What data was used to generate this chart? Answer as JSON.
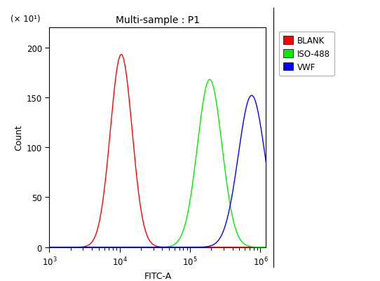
{
  "title": "Multi-sample : P1",
  "xlabel": "FITC-A",
  "ylabel": "Count",
  "ylabel_extra": "(× 10¹)",
  "ylim": [
    0,
    220
  ],
  "yticks": [
    0,
    50,
    100,
    150,
    200
  ],
  "xlim_log": [
    1000,
    1200000
  ],
  "curves": [
    {
      "label": "BLANK",
      "color": "red",
      "peak_x": 10500,
      "sigma": 0.155,
      "peak_y": 193
    },
    {
      "label": "ISO-488",
      "color": "#00ee00",
      "peak_x": 190000,
      "sigma": 0.175,
      "peak_y": 168
    },
    {
      "label": "VWF",
      "color": "blue",
      "peak_x": 750000,
      "sigma": 0.19,
      "peak_y": 152
    }
  ],
  "legend_colors": [
    "red",
    "#00ee00",
    "blue"
  ],
  "legend_labels": [
    "BLANK",
    "ISO-488",
    "VWF"
  ],
  "bg_color": "#ffffff",
  "title_fontsize": 10,
  "axis_fontsize": 9,
  "tick_fontsize": 8.5
}
